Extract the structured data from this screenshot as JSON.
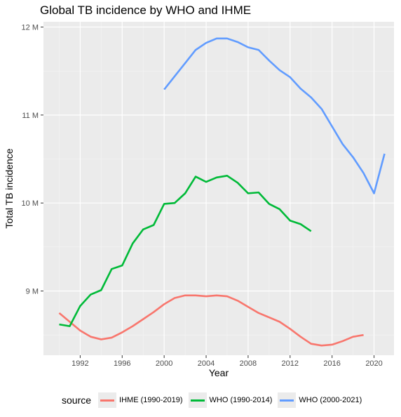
{
  "chart_data": {
    "type": "line",
    "title": "Global TB incidence by WHO and IHME",
    "xlabel": "Year",
    "ylabel": "Total TB incidence",
    "xlim": [
      1988.5,
      2021.9
    ],
    "ylim": [
      8270000,
      12060000
    ],
    "x_ticks": [
      1992,
      1996,
      2000,
      2004,
      2008,
      2012,
      2016,
      2020
    ],
    "x_tick_labels": [
      "1992",
      "1996",
      "2000",
      "2004",
      "2008",
      "2012",
      "2016",
      "2020"
    ],
    "y_ticks": [
      9000000,
      10000000,
      11000000,
      12000000
    ],
    "y_tick_labels": [
      "9 M",
      "10 M",
      "11 M",
      "12 M"
    ],
    "grid": true,
    "legend": {
      "title": "source",
      "position": "bottom"
    },
    "series": [
      {
        "name": "IHME (1990-2019)",
        "color": "#F8766D",
        "x": [
          1990,
          1991,
          1992,
          1993,
          1994,
          1995,
          1996,
          1997,
          1998,
          1999,
          2000,
          2001,
          2002,
          2003,
          2004,
          2005,
          2006,
          2007,
          2008,
          2009,
          2010,
          2011,
          2012,
          2013,
          2014,
          2015,
          2016,
          2017,
          2018,
          2019
        ],
        "values": [
          8750000,
          8650000,
          8550000,
          8480000,
          8450000,
          8470000,
          8530000,
          8600000,
          8680000,
          8760000,
          8850000,
          8920000,
          8950000,
          8950000,
          8940000,
          8950000,
          8940000,
          8890000,
          8820000,
          8750000,
          8700000,
          8650000,
          8570000,
          8480000,
          8400000,
          8380000,
          8390000,
          8430000,
          8480000,
          8500000
        ]
      },
      {
        "name": "WHO (1990-2014)",
        "color": "#00BA38",
        "x": [
          1990,
          1991,
          1992,
          1993,
          1994,
          1995,
          1996,
          1997,
          1998,
          1999,
          2000,
          2001,
          2002,
          2003,
          2004,
          2005,
          2006,
          2007,
          2008,
          2009,
          2010,
          2011,
          2012,
          2013,
          2014
        ],
        "values": [
          8620000,
          8600000,
          8830000,
          8960000,
          9010000,
          9250000,
          9290000,
          9540000,
          9700000,
          9750000,
          9990000,
          10000000,
          10110000,
          10300000,
          10240000,
          10290000,
          10310000,
          10230000,
          10110000,
          10120000,
          9990000,
          9930000,
          9800000,
          9760000,
          9680000
        ]
      },
      {
        "name": "WHO (2000-2021)",
        "color": "#619CFF",
        "x": [
          2000,
          2001,
          2002,
          2003,
          2004,
          2005,
          2006,
          2007,
          2008,
          2009,
          2010,
          2011,
          2012,
          2013,
          2014,
          2015,
          2016,
          2017,
          2018,
          2019,
          2020,
          2021
        ],
        "values": [
          11290000,
          11440000,
          11590000,
          11740000,
          11820000,
          11870000,
          11870000,
          11830000,
          11770000,
          11740000,
          11620000,
          11510000,
          11430000,
          11300000,
          11200000,
          11070000,
          10870000,
          10670000,
          10520000,
          10340000,
          10110000,
          10560000
        ]
      }
    ]
  }
}
